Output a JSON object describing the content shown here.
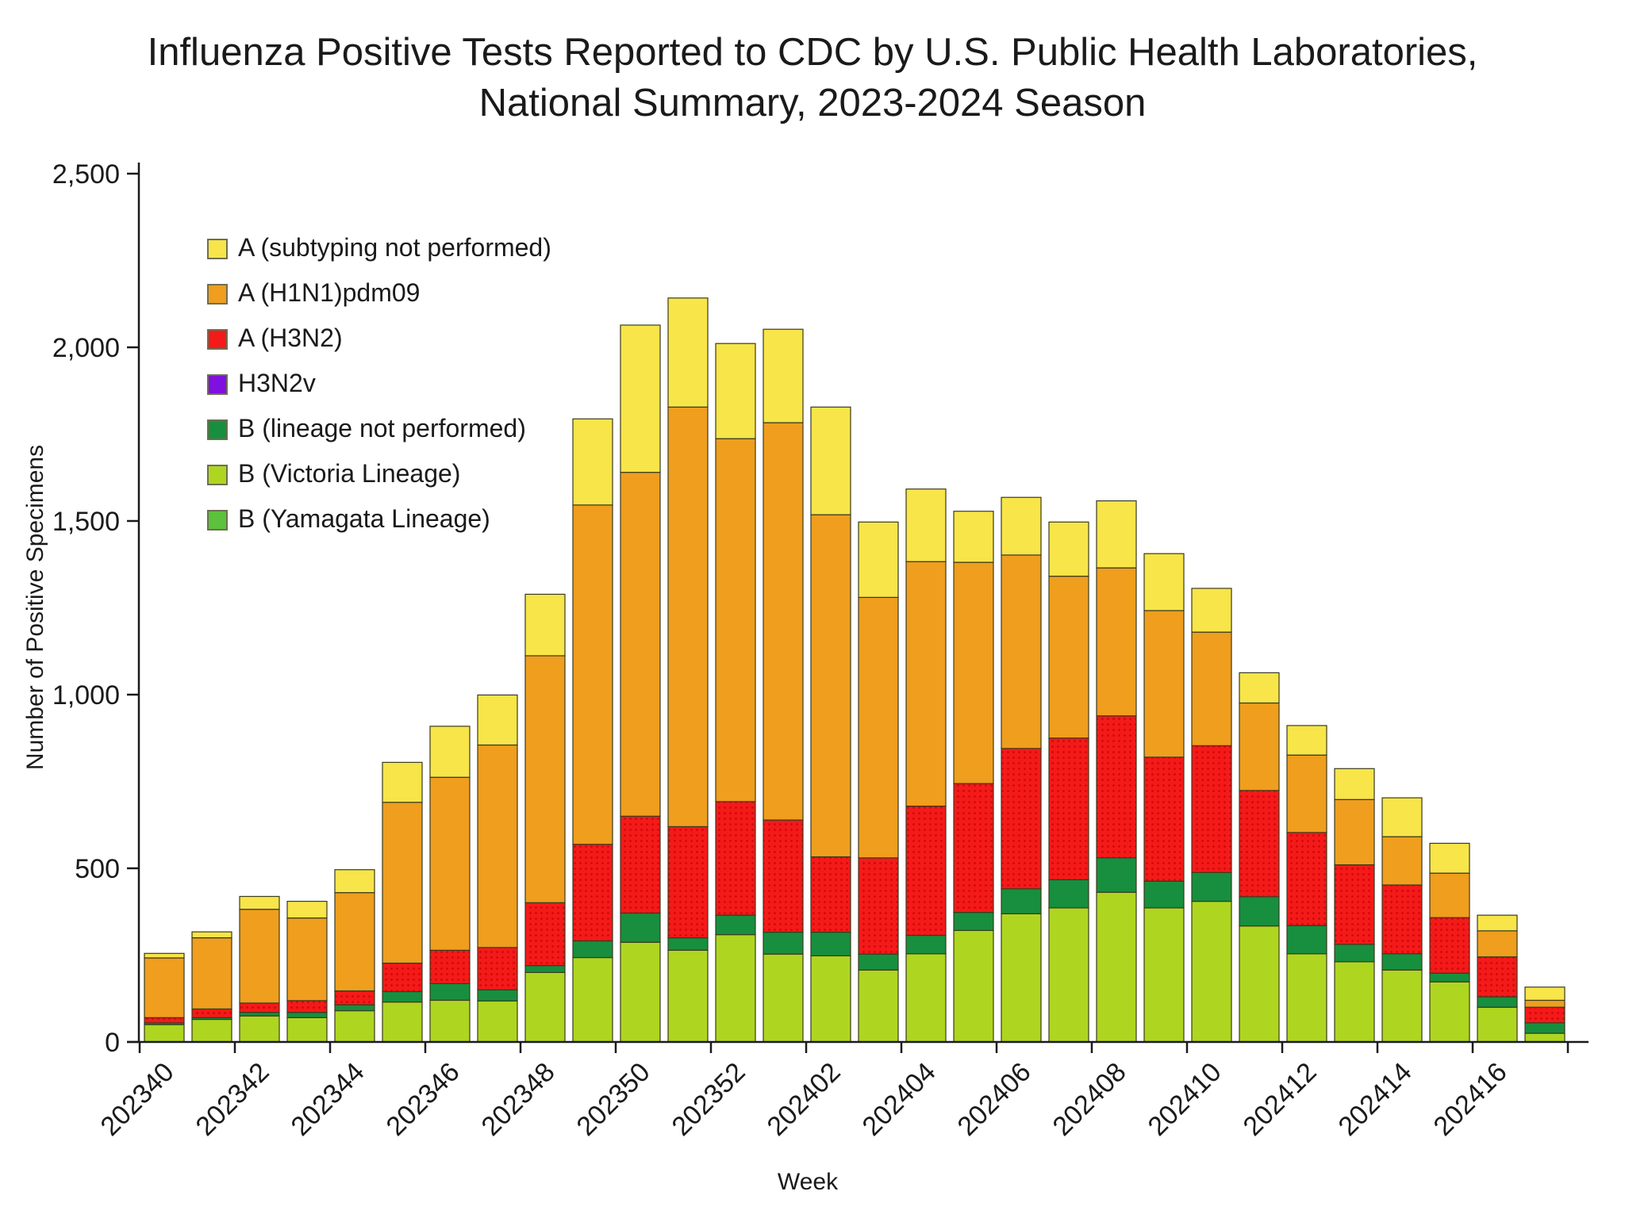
{
  "title": {
    "line1": "Influenza Positive Tests Reported to CDC by U.S. Public Health Laboratories,",
    "line2": "National Summary, 2023-2024 Season"
  },
  "chart_data": {
    "type": "bar",
    "stacked": true,
    "title": "Influenza Positive Tests Reported to CDC by U.S. Public Health Laboratories, National Summary, 2023-2024 Season",
    "xlabel": "Week",
    "ylabel": "Number of Positive Specimens",
    "ylim": [
      0,
      2500
    ],
    "grid": false,
    "legend_position": "top-left",
    "ytick_values": [
      0,
      500,
      1000,
      1500,
      2000,
      2500
    ],
    "ytick_labels": [
      "0",
      "500",
      "1,000",
      "1,500",
      "2,000",
      "2,500"
    ],
    "categories": [
      "202340",
      "202341",
      "202342",
      "202343",
      "202344",
      "202345",
      "202346",
      "202347",
      "202348",
      "202349",
      "202350",
      "202351",
      "202352",
      "202401",
      "202402",
      "202403",
      "202404",
      "202405",
      "202406",
      "202407",
      "202408",
      "202409",
      "202410",
      "202411",
      "202412",
      "202413",
      "202414",
      "202415",
      "202416",
      "202417"
    ],
    "xtick_labels": [
      "202340",
      "202342",
      "202344",
      "202346",
      "202348",
      "202350",
      "202352",
      "202402",
      "202404",
      "202406",
      "202408",
      "202410",
      "202412",
      "202414",
      "202416"
    ],
    "series": [
      {
        "name": "A (subtyping not performed)",
        "color": "#F7E549",
        "values": [
          13,
          17,
          37,
          48,
          66,
          115,
          147,
          144,
          177,
          248,
          424,
          314,
          274,
          269,
          310,
          217,
          209,
          147,
          166,
          156,
          193,
          164,
          126,
          87,
          85,
          89,
          112,
          86,
          45,
          38
        ]
      },
      {
        "name": "A (H1N1)pdm09",
        "color": "#EF9E1E",
        "values": [
          172,
          205,
          270,
          238,
          283,
          463,
          498,
          583,
          711,
          977,
          990,
          1208,
          1045,
          1144,
          985,
          750,
          704,
          637,
          557,
          466,
          426,
          422,
          327,
          252,
          223,
          188,
          139,
          128,
          75,
          20
        ]
      },
      {
        "name": "A (H3N2)",
        "color": "#F41A1A",
        "values": [
          15,
          25,
          27,
          34,
          40,
          82,
          96,
          122,
          181,
          278,
          279,
          320,
          327,
          323,
          217,
          277,
          372,
          371,
          404,
          408,
          409,
          357,
          365,
          306,
          268,
          229,
          198,
          160,
          115,
          45
        ]
      },
      {
        "name": "H3N2v",
        "color": "#7F10E0",
        "values": [
          0,
          0,
          0,
          0,
          0,
          0,
          0,
          0,
          0,
          0,
          0,
          0,
          0,
          0,
          0,
          0,
          0,
          0,
          0,
          0,
          0,
          0,
          0,
          0,
          0,
          0,
          0,
          0,
          0,
          0
        ]
      },
      {
        "name": "B (lineage not performed)",
        "color": "#178F3F",
        "values": [
          5,
          5,
          10,
          15,
          17,
          30,
          48,
          32,
          20,
          48,
          84,
          36,
          56,
          63,
          68,
          46,
          53,
          52,
          72,
          81,
          99,
          77,
          83,
          84,
          81,
          50,
          47,
          25,
          30,
          30
        ]
      },
      {
        "name": "B (Victoria Lineage)",
        "color": "#AED620",
        "values": [
          50,
          65,
          75,
          70,
          90,
          115,
          120,
          118,
          200,
          243,
          287,
          264,
          309,
          253,
          248,
          207,
          254,
          321,
          369,
          386,
          431,
          386,
          405,
          334,
          254,
          231,
          207,
          173,
          100,
          25
        ]
      },
      {
        "name": "B (Yamagata Lineage)",
        "color": "#5CC13C",
        "values": [
          0,
          0,
          0,
          0,
          0,
          0,
          0,
          0,
          0,
          0,
          0,
          0,
          0,
          0,
          0,
          0,
          0,
          0,
          0,
          0,
          0,
          0,
          0,
          0,
          0,
          0,
          0,
          0,
          0,
          0
        ]
      }
    ]
  }
}
